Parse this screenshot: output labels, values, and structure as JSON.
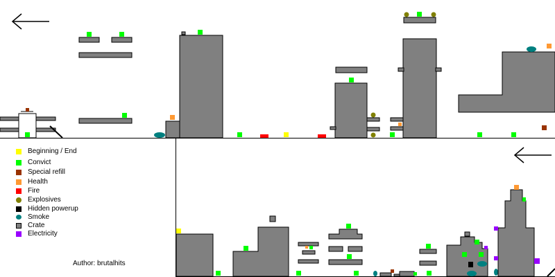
{
  "legend": {
    "items": [
      {
        "label": "Beginning / End",
        "color": "#ffff00",
        "icon": "square-icon"
      },
      {
        "label": "Convict",
        "color": "#00ff00",
        "icon": "square-icon"
      },
      {
        "label": "Special refill",
        "color": "#993300",
        "icon": "square-icon"
      },
      {
        "label": "Health",
        "color": "#ff9933",
        "icon": "square-icon"
      },
      {
        "label": "Fire",
        "color": "#ff0000",
        "icon": "square-icon"
      },
      {
        "label": "Explosives",
        "color": "#808000",
        "icon": "circle-icon"
      },
      {
        "label": "Hidden powerup",
        "color": "#000000",
        "icon": "square-icon"
      },
      {
        "label": "Smoke",
        "color": "#008080",
        "icon": "oval-icon"
      },
      {
        "label": "Crate",
        "color": "#808080",
        "icon": "crate-icon"
      },
      {
        "label": "Electricity",
        "color": "#9900ff",
        "icon": "square-icon"
      }
    ]
  },
  "author": "Author: brutalhits",
  "colors": {
    "platform": "#808080",
    "outline": "#000000",
    "background": "#ffffff"
  }
}
